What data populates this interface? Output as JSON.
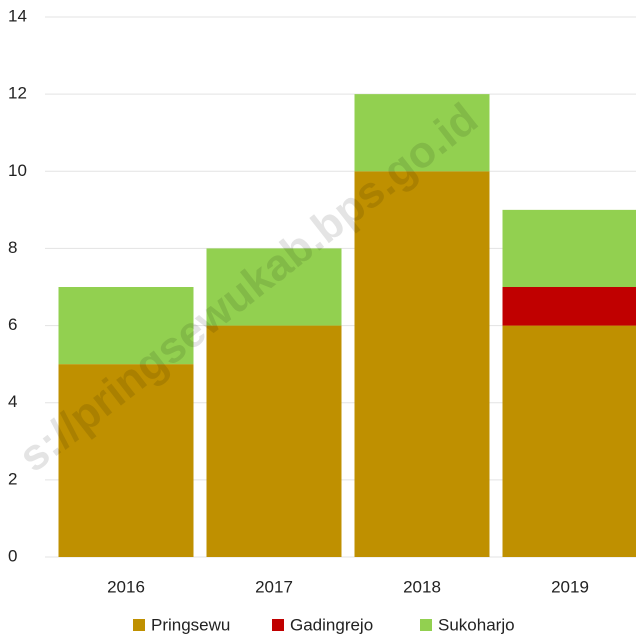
{
  "chart_data": {
    "type": "stacked_bar",
    "categories": [
      "2016",
      "2017",
      "2018",
      "2019"
    ],
    "series": [
      {
        "name": "Pringsewu",
        "color": "#bf9000",
        "values": [
          5,
          6,
          10,
          6
        ]
      },
      {
        "name": "Gadingrejo",
        "color": "#c00000",
        "values": [
          0,
          0,
          0,
          1
        ]
      },
      {
        "name": "Sukoharjo",
        "color": "#92d050",
        "values": [
          2,
          2,
          2,
          2
        ]
      }
    ],
    "ylim": [
      0,
      14
    ],
    "yticks": [
      0,
      2,
      4,
      6,
      8,
      10,
      12,
      14
    ],
    "grid": true,
    "legend": "bottom",
    "watermark": "s://pringsewukab.bps.go.id"
  }
}
